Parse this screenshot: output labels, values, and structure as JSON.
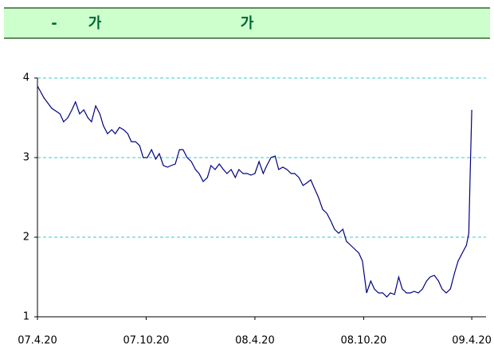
{
  "chart_data": {
    "type": "line",
    "title_parts": [
      "-",
      "가",
      "가"
    ],
    "x": [
      0,
      11,
      24,
      38,
      44,
      51,
      58,
      64,
      71,
      78,
      85,
      91,
      98,
      105,
      111,
      118,
      125,
      131,
      138,
      145,
      152,
      158,
      165,
      172,
      178,
      185,
      192,
      199,
      205,
      212,
      219,
      225,
      232,
      239,
      245,
      252,
      259,
      266,
      272,
      279,
      286,
      292,
      299,
      306,
      313,
      319,
      326,
      333,
      339,
      346,
      353,
      359,
      366,
      373,
      380,
      386,
      393,
      400,
      406,
      413,
      420,
      427,
      433,
      440,
      447,
      453,
      460,
      467,
      473,
      480,
      487,
      494,
      500,
      507,
      514,
      520,
      527,
      534,
      541,
      547,
      554,
      561,
      567,
      574,
      581,
      588,
      594,
      601,
      608,
      614,
      621,
      628,
      634,
      641,
      648,
      655,
      661,
      668,
      675,
      681,
      688,
      695,
      702,
      708,
      715,
      722,
      726,
      728,
      731
    ],
    "series": [
      {
        "color": "#000080",
        "values": [
          3.9,
          3.75,
          3.62,
          3.55,
          3.45,
          3.5,
          3.6,
          3.7,
          3.55,
          3.6,
          3.5,
          3.45,
          3.65,
          3.55,
          3.4,
          3.3,
          3.35,
          3.3,
          3.38,
          3.35,
          3.3,
          3.2,
          3.2,
          3.15,
          3.0,
          3.0,
          3.1,
          2.98,
          3.05,
          2.9,
          2.88,
          2.9,
          2.92,
          3.1,
          3.1,
          3.0,
          2.95,
          2.85,
          2.8,
          2.7,
          2.75,
          2.9,
          2.85,
          2.92,
          2.85,
          2.8,
          2.85,
          2.75,
          2.85,
          2.8,
          2.8,
          2.78,
          2.8,
          2.95,
          2.8,
          2.9,
          3.0,
          3.02,
          2.85,
          2.88,
          2.85,
          2.8,
          2.8,
          2.75,
          2.65,
          2.68,
          2.72,
          2.6,
          2.5,
          2.35,
          2.3,
          2.2,
          2.1,
          2.05,
          2.1,
          1.95,
          1.9,
          1.85,
          1.8,
          1.7,
          1.3,
          1.45,
          1.35,
          1.3,
          1.3,
          1.25,
          1.3,
          1.28,
          1.5,
          1.35,
          1.3,
          1.3,
          1.32,
          1.3,
          1.35,
          1.45,
          1.5,
          1.52,
          1.45,
          1.35,
          1.3,
          1.35,
          1.55,
          1.7,
          1.8,
          1.9,
          2.05,
          2.7,
          3.6
        ]
      }
    ],
    "xlim": [
      0,
      755
    ],
    "xticks": [
      {
        "value": 0,
        "label": "07.4.20"
      },
      {
        "value": 183,
        "label": "07.10.20"
      },
      {
        "value": 366,
        "label": "08.4.20"
      },
      {
        "value": 549,
        "label": "08.10.20"
      },
      {
        "value": 731,
        "label": "09.4.20"
      }
    ],
    "ylim": [
      1,
      4
    ],
    "yticks": [
      1,
      2,
      3,
      4
    ],
    "grid": true,
    "grid_color": "#33cccc"
  }
}
